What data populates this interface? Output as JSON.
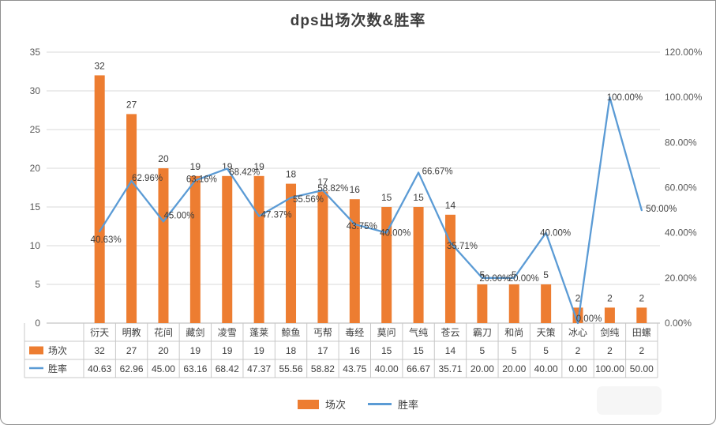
{
  "chart_data": {
    "type": "bar+line",
    "title": "dps出场次数&胜率",
    "categories": [
      "衍天",
      "明教",
      "花间",
      "藏剑",
      "凌雪",
      "蓬莱",
      "鲸鱼",
      "丐帮",
      "毒经",
      "莫问",
      "气纯",
      "苍云",
      "霸刀",
      "和尚",
      "天策",
      "冰心",
      "剑纯",
      "田螺"
    ],
    "series": [
      {
        "name": "场次",
        "type": "bar",
        "axis": "left",
        "color": "#ED7D31",
        "values": [
          32,
          27,
          20,
          19,
          19,
          19,
          18,
          17,
          16,
          15,
          15,
          14,
          5,
          5,
          5,
          2,
          2,
          2
        ],
        "labels": [
          "32",
          "27",
          "20",
          "19",
          "19",
          "19",
          "18",
          "17",
          "16",
          "15",
          "15",
          "14",
          "5",
          "5",
          "5",
          "2",
          "2",
          "2"
        ]
      },
      {
        "name": "胜率",
        "type": "line",
        "axis": "right",
        "color": "#5B9BD5",
        "values": [
          40.63,
          62.96,
          45.0,
          63.16,
          68.42,
          47.37,
          55.56,
          58.82,
          43.75,
          40.0,
          66.67,
          35.71,
          20.0,
          20.0,
          40.0,
          0.0,
          100.0,
          50.0
        ],
        "labels": [
          "40.63%",
          "62.96%",
          "45.00%",
          "63.16%",
          "68.42%",
          "47.37%",
          "55.56%",
          "58.82%",
          "43.75%",
          "40.00%",
          "66.67%",
          "35.71%",
          "20.00%",
          "20.00%",
          "40.00%",
          "0.00%",
          "100.00%",
          "50.00%"
        ]
      }
    ],
    "left_axis": {
      "min": 0,
      "max": 35,
      "step": 5,
      "tick_labels": [
        "0",
        "5",
        "10",
        "15",
        "20",
        "25",
        "30",
        "35"
      ]
    },
    "right_axis": {
      "min": 0,
      "max": 120,
      "step": 20,
      "tick_labels": [
        "0.00%",
        "20.00%",
        "40.00%",
        "60.00%",
        "80.00%",
        "100.00%",
        "120.00%"
      ]
    },
    "grid": true,
    "legend": {
      "position": "bottom",
      "items": [
        {
          "label": "场次",
          "color": "#ED7D31",
          "marker": "rect"
        },
        {
          "label": "胜率",
          "color": "#5B9BD5",
          "marker": "line"
        }
      ]
    },
    "data_table": {
      "rows": [
        {
          "header": "场次",
          "values": [
            "32",
            "27",
            "20",
            "19",
            "19",
            "19",
            "18",
            "17",
            "16",
            "15",
            "15",
            "14",
            "5",
            "5",
            "5",
            "2",
            "2",
            "2"
          ]
        },
        {
          "header": "胜率",
          "values": [
            "40.63",
            "62.96",
            "45.00",
            "63.16",
            "68.42",
            "47.37",
            "55.56",
            "58.82",
            "43.75",
            "40.00",
            "66.67",
            "35.71",
            "20.00",
            "20.00",
            "40.00",
            "0.00",
            "100.00",
            "50.00"
          ]
        }
      ]
    }
  }
}
